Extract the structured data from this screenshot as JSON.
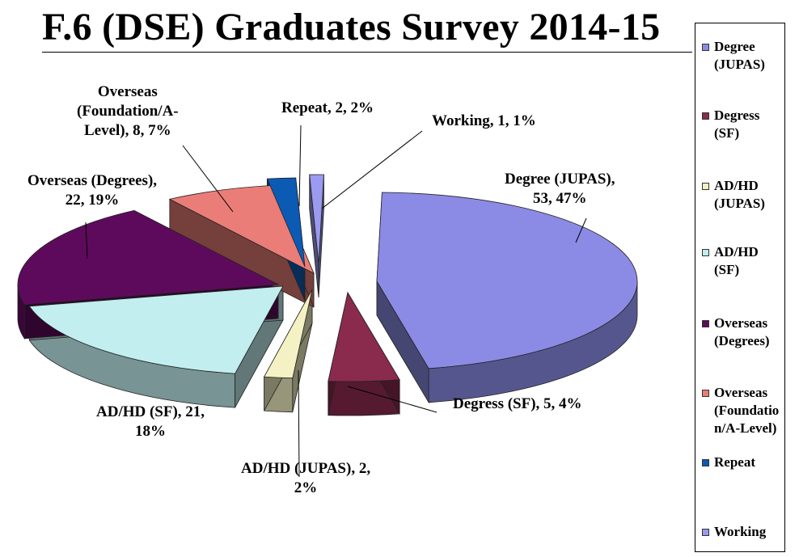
{
  "chart_data": {
    "type": "pie",
    "title": "F.6 (DSE) Graduates Survey 2014-15",
    "style": "3d-exploded",
    "legend": "right",
    "slices": [
      {
        "name": "Degree (JUPAS)",
        "value": 53,
        "percent": "47%",
        "color": "#8b8be6",
        "label": "Degree (JUPAS),\n53, 47%",
        "legend_label": "Degree\n(JUPAS)"
      },
      {
        "name": "Degress (SF)",
        "value": 5,
        "percent": "4%",
        "color": "#8a2a4d",
        "label": "Degress (SF), 5, 4%",
        "legend_label": "Degress\n(SF)"
      },
      {
        "name": "AD/HD (JUPAS)",
        "value": 2,
        "percent": "2%",
        "color": "#f4f2c4",
        "label": "AD/HD (JUPAS), 2,\n2%",
        "legend_label": "AD/HD\n(JUPAS)"
      },
      {
        "name": "AD/HD (SF)",
        "value": 21,
        "percent": "18%",
        "color": "#c2eef0",
        "label": "AD/HD (SF), 21,\n18%",
        "legend_label": "AD/HD\n(SF)"
      },
      {
        "name": "Overseas (Degrees)",
        "value": 22,
        "percent": "19%",
        "color": "#5e0a5c",
        "label": "Overseas (Degrees),\n22, 19%",
        "legend_label": "Overseas\n(Degrees)"
      },
      {
        "name": "Overseas (Foundation/A-Level)",
        "value": 8,
        "percent": "7%",
        "color": "#ea7d77",
        "label": "Overseas\n(Foundation/A-\nLevel), 8, 7%",
        "legend_label": "Overseas\n(Foundation/A-Level)"
      },
      {
        "name": "Repeat",
        "value": 2,
        "percent": "2%",
        "color": "#0b5bb5",
        "label": "Repeat, 2, 2%",
        "legend_label": "Repeat"
      },
      {
        "name": "Working",
        "value": 1,
        "percent": "1%",
        "color": "#9a9af0",
        "label": "Working, 1, 1%",
        "legend_label": "Working"
      }
    ]
  }
}
